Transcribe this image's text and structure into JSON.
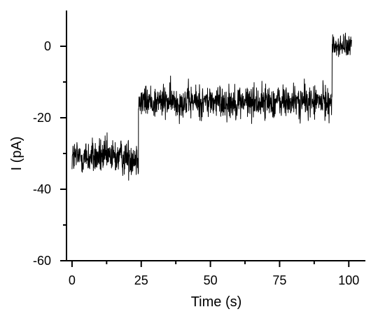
{
  "chart_data": {
    "type": "line",
    "title": "",
    "xlabel": "Time (s)",
    "ylabel": "I (pA)",
    "xlim": [
      -2,
      106
    ],
    "ylim": [
      -60,
      10
    ],
    "xticks": [
      0,
      25,
      50,
      75,
      100
    ],
    "xtick_labels": [
      "0",
      "25",
      "50",
      "75",
      "100"
    ],
    "yticks": [
      -60,
      -40,
      -20,
      0
    ],
    "ytick_labels": [
      "-60",
      "-40",
      "-20",
      "0"
    ],
    "grid": false,
    "legend": "none",
    "series": [
      {
        "color": "#000000",
        "segments": [
          {
            "x_start": 0,
            "x_end": 24,
            "mean": -31,
            "noise_range": [
              -38,
              -23
            ]
          },
          {
            "x_start": 24,
            "x_end": 94,
            "mean": -15.5,
            "noise_range": [
              -22,
              -8
            ]
          },
          {
            "x_start": 94,
            "x_end": 101,
            "mean": 0,
            "noise_range": [
              -5,
              4
            ]
          }
        ],
        "x": [
          0,
          24,
          24,
          94,
          94,
          101
        ],
        "y": [
          -31,
          -31,
          -15.5,
          -15.5,
          0,
          0
        ]
      }
    ]
  }
}
